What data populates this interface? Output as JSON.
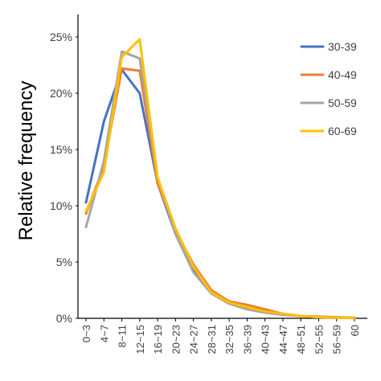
{
  "chart_data": {
    "type": "line",
    "title": "",
    "xlabel": "",
    "ylabel": "Relative frequency",
    "x": [
      "0~3",
      "4~7",
      "8~11",
      "12~15",
      "16~19",
      "20~23",
      "24~27",
      "28~31",
      "32~35",
      "36~39",
      "40~43",
      "44~47",
      "48~51",
      "52~55",
      "56~59",
      "60"
    ],
    "yticks": [
      "0%",
      "5%",
      "10%",
      "15%",
      "20%",
      "25%"
    ],
    "ylim": [
      0,
      0.27
    ],
    "grid": false,
    "legend_position": "right",
    "series": [
      {
        "name": "30-39",
        "color": "#4472C4",
        "values": [
          0.103,
          0.175,
          0.221,
          0.2,
          0.12,
          0.075,
          0.043,
          0.024,
          0.015,
          0.01,
          0.006,
          0.004,
          0.002,
          0.001,
          0.0005,
          0.0003
        ]
      },
      {
        "name": "40-49",
        "color": "#ED7D31",
        "values": [
          0.093,
          0.135,
          0.222,
          0.22,
          0.12,
          0.078,
          0.048,
          0.025,
          0.015,
          0.012,
          0.008,
          0.004,
          0.002,
          0.0015,
          0.001,
          0.0005
        ]
      },
      {
        "name": "50-59",
        "color": "#A5A5A5",
        "values": [
          0.081,
          0.14,
          0.237,
          0.231,
          0.125,
          0.075,
          0.041,
          0.022,
          0.013,
          0.008,
          0.005,
          0.003,
          0.002,
          0.001,
          0.0005,
          0.0003
        ]
      },
      {
        "name": "60-69",
        "color": "#FFC000",
        "values": [
          0.095,
          0.13,
          0.232,
          0.248,
          0.125,
          0.08,
          0.046,
          0.023,
          0.014,
          0.01,
          0.006,
          0.004,
          0.002,
          0.001,
          0.0005,
          0.0003
        ]
      }
    ]
  }
}
